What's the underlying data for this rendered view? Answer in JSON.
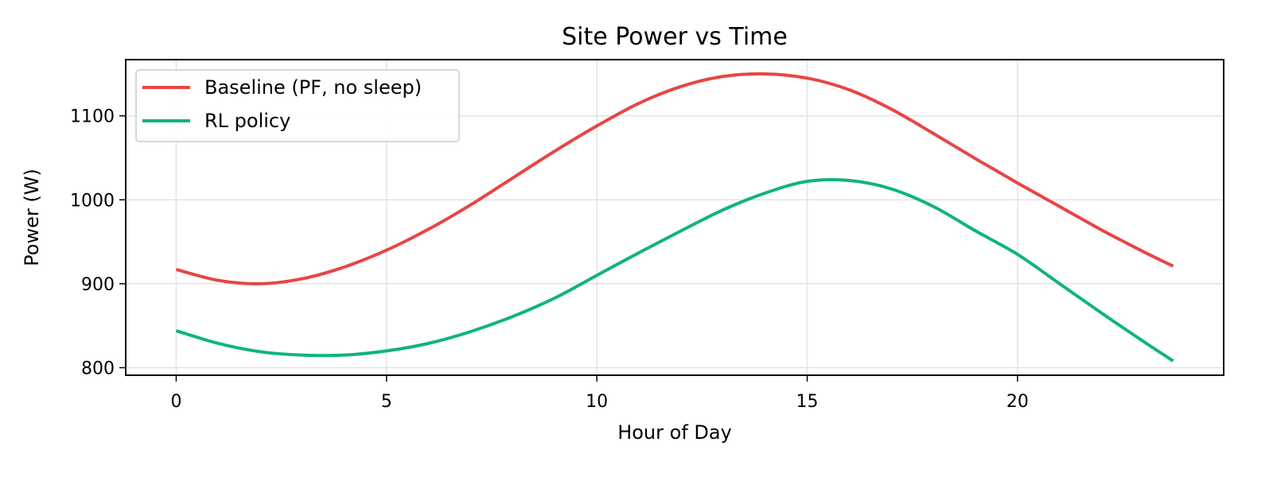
{
  "chart_data": {
    "type": "line",
    "title": "Site Power vs Time",
    "xlabel": "Hour of Day",
    "ylabel": "Power (W)",
    "xlim": [
      -1.2,
      24.9
    ],
    "ylim": [
      791,
      1167
    ],
    "xticks": [
      0,
      5,
      10,
      15,
      20
    ],
    "yticks": [
      800,
      900,
      1000,
      1100
    ],
    "grid": true,
    "legend_position": "top-left",
    "x": [
      0,
      1,
      2,
      3,
      4,
      5,
      6,
      7,
      8,
      9,
      10,
      11,
      12,
      13,
      14,
      15,
      16,
      17,
      18,
      19,
      20,
      21,
      22,
      23,
      23.7
    ],
    "series": [
      {
        "name": "Baseline (PF, no sleep)",
        "color": "#e84545",
        "values": [
          917,
          904,
          900,
          906,
          920,
          940,
          965,
          994,
          1026,
          1058,
          1088,
          1115,
          1135,
          1147,
          1150,
          1145,
          1131,
          1108,
          1079,
          1049,
          1020,
          992,
          964,
          938,
          921
        ]
      },
      {
        "name": "RL policy",
        "color": "#10b37f",
        "values": [
          844,
          829,
          819,
          815,
          815,
          820,
          829,
          843,
          861,
          883,
          910,
          937,
          963,
          988,
          1008,
          1022,
          1023,
          1013,
          992,
          963,
          935,
          900,
          865,
          831,
          808
        ]
      }
    ]
  }
}
